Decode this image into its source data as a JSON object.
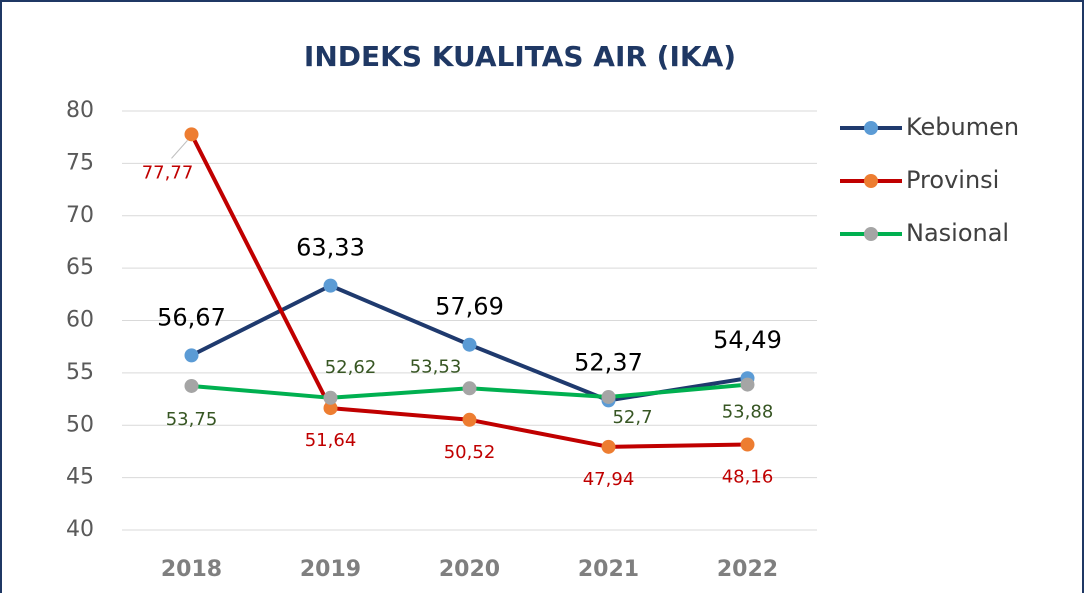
{
  "chart_data": {
    "type": "line",
    "title": "INDEKS KUALITAS AIR (IKA)",
    "categories": [
      "2018",
      "2019",
      "2020",
      "2021",
      "2022"
    ],
    "series": [
      {
        "name": "Kebumen",
        "color": "#1f3a6e",
        "marker_color": "#5b9bd5",
        "label_color": "#000000",
        "values": [
          56.67,
          63.33,
          57.69,
          52.37,
          54.49
        ],
        "value_labels": [
          "56,67",
          "63,33",
          "57,69",
          "52,37",
          "54,49"
        ]
      },
      {
        "name": "Provinsi",
        "color": "#c00000",
        "marker_color": "#ed7d31",
        "label_color": "#c00000",
        "values": [
          77.77,
          51.64,
          50.52,
          47.94,
          48.16
        ],
        "value_labels": [
          "77,77",
          "51,64",
          "50,52",
          "47,94",
          "48,16"
        ]
      },
      {
        "name": "Nasional",
        "color": "#00b050",
        "marker_color": "#a5a5a5",
        "label_color": "#375623",
        "values": [
          53.75,
          52.62,
          53.53,
          52.7,
          53.88
        ],
        "value_labels": [
          "53,75",
          "52,62",
          "53,53",
          "52,7",
          "53,88"
        ]
      }
    ],
    "ylim": [
      40,
      80
    ],
    "yticks": [
      40,
      45,
      50,
      55,
      60,
      65,
      70,
      75,
      80
    ],
    "grid": true,
    "legend": "right"
  }
}
